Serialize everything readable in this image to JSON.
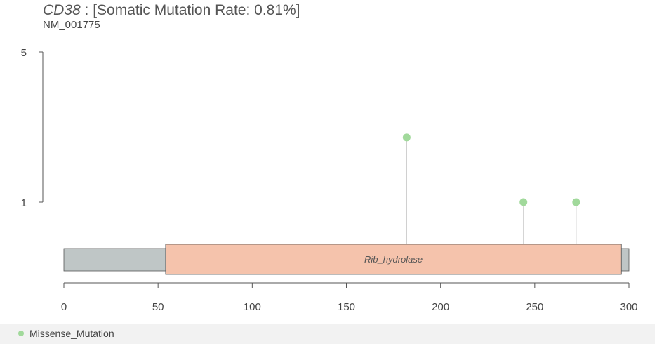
{
  "title": {
    "gene": "CD38",
    "text": " : [Somatic Mutation Rate: 0.81%]"
  },
  "subtitle": "NM_001775",
  "chart_data": {
    "type": "lollipop",
    "protein_length": 300,
    "xlim": [
      0,
      300
    ],
    "x_ticks": [
      0,
      50,
      100,
      150,
      200,
      250,
      300
    ],
    "y_ticks": [
      1,
      5
    ],
    "y_scale": "log",
    "protein_color": "#bfc6c6",
    "domains": [
      {
        "name": "Rib_hydrolase",
        "start": 54,
        "end": 296,
        "color": "#f5c3ac"
      }
    ],
    "mutations": [
      {
        "position": 182,
        "count": 2,
        "type": "Missense_Mutation"
      },
      {
        "position": 244,
        "count": 1,
        "type": "Missense_Mutation"
      },
      {
        "position": 272,
        "count": 1,
        "type": "Missense_Mutation"
      }
    ],
    "legend": [
      {
        "label": "Missense_Mutation",
        "color": "#a1d99b"
      }
    ]
  }
}
